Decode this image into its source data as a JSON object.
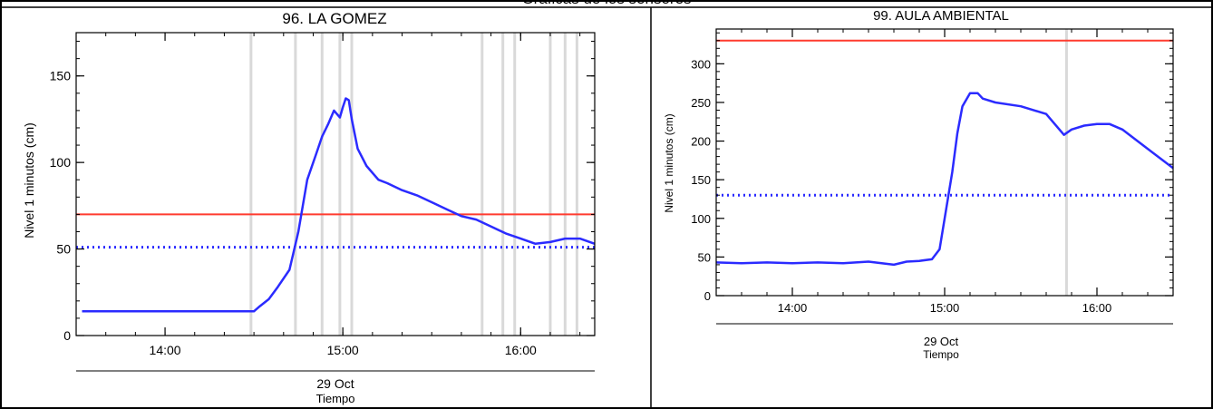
{
  "header": {
    "title": "Gráficas de los sensores"
  },
  "chart_data": [
    {
      "type": "line",
      "title": "96. LA GOMEZ",
      "ylabel": "Nivel 1 minutos (cm)",
      "xlabel": "Tiempo",
      "date_label": "29 Oct",
      "ylim": [
        0,
        175
      ],
      "xlim": [
        "13:30",
        "16:25"
      ],
      "yticks": [
        0,
        50,
        100,
        150
      ],
      "yticks_minor_step": 10,
      "xticks": [
        "14:00",
        "15:00",
        "16:00"
      ],
      "threshold_line": {
        "value": 70,
        "color": "#ff3b2f"
      },
      "reference_line": {
        "value": 51,
        "color": "#2b2bff",
        "style": "dotted"
      },
      "gap_lines": [
        "14:29",
        "14:44",
        "14:53",
        "14:59",
        "15:03",
        "15:47",
        "15:54",
        "15:58",
        "16:10",
        "16:15",
        "16:19"
      ],
      "gap_line_color": "#d9d9d9",
      "series": [
        {
          "color": "#2b2bff",
          "x": [
            "13:32",
            "14:28",
            "14:30",
            "14:32",
            "14:35",
            "14:38",
            "14:42",
            "14:45",
            "14:48",
            "14:51",
            "14:53",
            "14:55",
            "14:57",
            "14:59",
            "15:00",
            "15:01",
            "15:02",
            "15:03",
            "15:05",
            "15:08",
            "15:12",
            "15:15",
            "15:20",
            "15:25",
            "15:30",
            "15:35",
            "15:40",
            "15:45",
            "15:50",
            "15:55",
            "16:00",
            "16:05",
            "16:10",
            "16:15",
            "16:20",
            "16:25"
          ],
          "y": [
            14,
            14,
            14,
            17,
            21,
            28,
            38,
            60,
            90,
            105,
            115,
            122,
            130,
            126,
            132,
            137,
            136,
            125,
            108,
            98,
            90,
            88,
            84,
            81,
            77,
            73,
            69,
            67,
            63,
            59,
            56,
            53,
            54,
            56,
            56,
            53
          ]
        }
      ]
    },
    {
      "type": "line",
      "title": "99. AULA AMBIENTAL",
      "ylabel": "Nivel 1 minutos (cm)",
      "xlabel": "Tiempo",
      "date_label": "29 Oct",
      "ylim": [
        0,
        345
      ],
      "xlim": [
        "13:30",
        "16:30"
      ],
      "yticks": [
        0,
        50,
        100,
        150,
        200,
        250,
        300
      ],
      "yticks_minor_step": 10,
      "xticks": [
        "14:00",
        "15:00",
        "16:00"
      ],
      "threshold_line": {
        "value": 330,
        "color": "#ff3b2f"
      },
      "reference_line": {
        "value": 130,
        "color": "#2b2bff",
        "style": "dotted"
      },
      "gap_lines": [
        "15:48"
      ],
      "gap_line_color": "#d9d9d9",
      "series": [
        {
          "color": "#2b2bff",
          "x": [
            "13:30",
            "13:40",
            "13:50",
            "14:00",
            "14:10",
            "14:20",
            "14:30",
            "14:40",
            "14:45",
            "14:50",
            "14:55",
            "14:58",
            "15:00",
            "15:03",
            "15:05",
            "15:07",
            "15:10",
            "15:13",
            "15:15",
            "15:20",
            "15:30",
            "15:40",
            "15:47",
            "15:50",
            "15:55",
            "16:00",
            "16:05",
            "16:10",
            "16:20",
            "16:30"
          ],
          "y": [
            43,
            42,
            43,
            42,
            43,
            42,
            44,
            40,
            44,
            45,
            47,
            60,
            100,
            160,
            210,
            245,
            262,
            262,
            255,
            250,
            245,
            235,
            208,
            215,
            220,
            222,
            222,
            215,
            190,
            165
          ]
        }
      ]
    }
  ]
}
